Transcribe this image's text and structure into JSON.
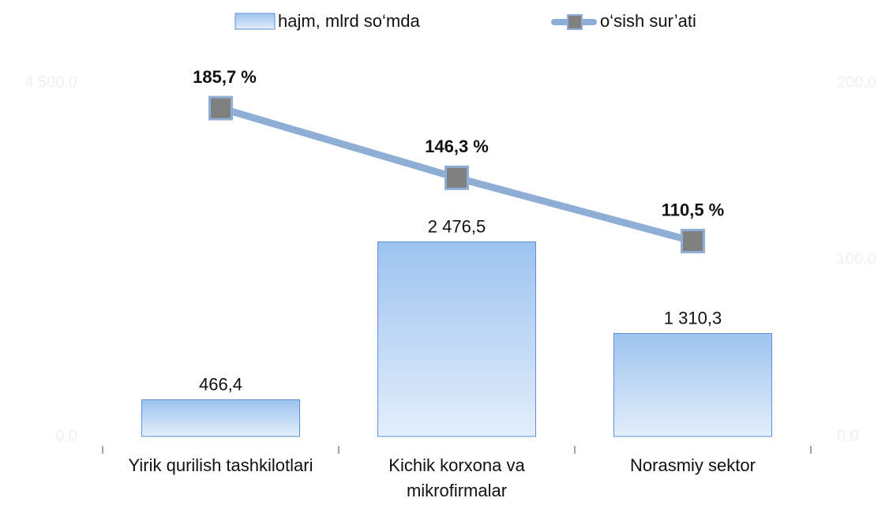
{
  "chart_data": {
    "type": "bar",
    "categories": [
      "Yirik qurilish tashkilotlari",
      "Kichik korxona va mikrofirmalar",
      "Norasmiy sektor"
    ],
    "series": [
      {
        "name": "hajm, mlrd so‘mda",
        "type": "bar",
        "color": "#9dc3ef",
        "values": [
          466.4,
          2476.5,
          1310.3
        ],
        "value_labels": [
          "466,4",
          "2 476,5",
          "1 310,3"
        ]
      },
      {
        "name": "o‘sish sur’ati",
        "type": "line",
        "axis": "y2",
        "color": "#8eaed6",
        "marker_color": "#808080",
        "values": [
          185.7,
          146.3,
          110.5
        ],
        "value_labels": [
          "185,7 %",
          "146,3 %",
          "110,5 %"
        ]
      }
    ],
    "ylim": [
      0,
      4500
    ],
    "yticks": [
      {
        "value": 0,
        "label": "0,0"
      },
      {
        "value": 4500,
        "label": "4 500,0"
      }
    ],
    "y2lim": [
      0,
      200
    ],
    "y2ticks": [
      {
        "value": 0,
        "label": "0,0"
      },
      {
        "value": 100,
        "label": "100,0"
      },
      {
        "value": 200,
        "label": "200,0"
      }
    ],
    "legend": "top"
  }
}
